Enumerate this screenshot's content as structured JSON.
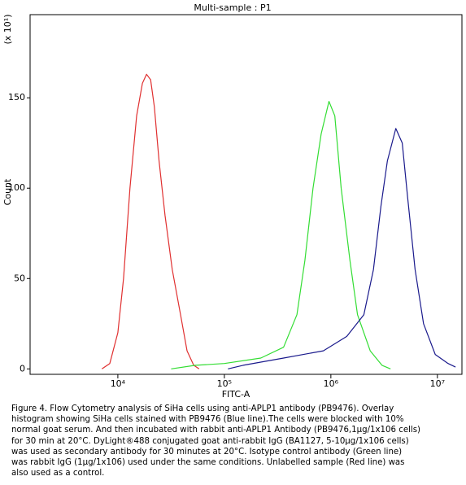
{
  "chart_data": {
    "type": "line",
    "title": "Multi-sample : P1",
    "x_label": "FITC-A",
    "y_label": "Count",
    "y_scale_note": "(x 10¹)",
    "log_x": true,
    "xlim": [
      1500,
      17000000
    ],
    "xticks": [
      {
        "value": 10000,
        "label": "10⁴"
      },
      {
        "value": 100000,
        "label": "10⁵"
      },
      {
        "value": 1000000,
        "label": "10⁶"
      },
      {
        "value": 10000000,
        "label": "10⁷"
      }
    ],
    "ylim": [
      -3,
      196
    ],
    "yticks": [
      0,
      50,
      100,
      150
    ],
    "series": [
      {
        "name": "Unlabelled",
        "color": "#e03030",
        "x": [
          7080,
          8400,
          10000,
          11300,
          13000,
          15000,
          17000,
          18600,
          20300,
          22000,
          24400,
          27700,
          32400,
          38800,
          44600,
          51600,
          57900
        ],
        "values": [
          0,
          3,
          20,
          50,
          100,
          140,
          158,
          163,
          160,
          145,
          115,
          85,
          55,
          30,
          10,
          2,
          0
        ]
      },
      {
        "name": "Isotype control",
        "color": "#33dd33",
        "x": [
          31600,
          53500,
          100000,
          220000,
          360000,
          480000,
          570000,
          680000,
          810000,
          960000,
          1090000,
          1250000,
          1510000,
          1780000,
          2340000,
          3020000,
          3630000
        ],
        "values": [
          0,
          2,
          3,
          6,
          12,
          30,
          60,
          100,
          130,
          148,
          140,
          100,
          60,
          30,
          10,
          2,
          0
        ]
      },
      {
        "name": "PB9476",
        "color": "#1a1a8c",
        "x": [
          108000,
          150000,
          360000,
          850000,
          1410000,
          2040000,
          2510000,
          2950000,
          3390000,
          4070000,
          4680000,
          5250000,
          6170000,
          7410000,
          9550000,
          12600000,
          14800000
        ],
        "values": [
          0,
          2,
          6,
          10,
          18,
          30,
          55,
          90,
          115,
          133,
          125,
          95,
          55,
          25,
          8,
          3,
          1
        ]
      }
    ]
  },
  "caption": [
    "Figure 4. Flow Cytometry analysis of SiHa cells using anti-APLP1 antibody (PB9476). Overlay",
    "histogram showing SiHa cells stained with PB9476 (Blue line).The cells were blocked with 10%",
    "normal goat serum. And then incubated with rabbit anti-APLP1 Antibody (PB9476,1μg/1x106 cells)",
    "for 30 min at 20°C. DyLight®488 conjugated goat anti-rabbit IgG (BA1127, 5-10μg/1x106 cells)",
    "was used as secondary antibody for 30 minutes at 20°C. Isotype control antibody (Green line)",
    "was rabbit IgG (1μg/1x106) used under the same conditions. Unlabelled sample (Red line) was",
    "also used as a control."
  ]
}
